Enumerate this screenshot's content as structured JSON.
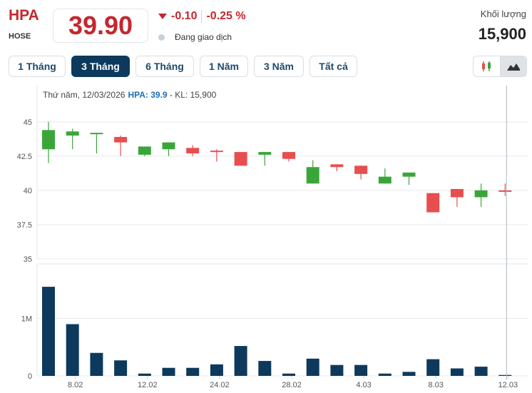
{
  "header": {
    "ticker": "HPA",
    "exchange": "HOSE",
    "price": "39.90",
    "change": "-0.10",
    "change_pct": "-0.25 %",
    "status": "Đang giao dịch",
    "volume_label": "Khối lượng",
    "volume_value": "15,900"
  },
  "range_tabs": [
    {
      "label": "1 Tháng",
      "active": false
    },
    {
      "label": "3 Tháng",
      "active": true
    },
    {
      "label": "6 Tháng",
      "active": false
    },
    {
      "label": "1 Năm",
      "active": false
    },
    {
      "label": "3 Năm",
      "active": false
    },
    {
      "label": "Tất cả",
      "active": false
    }
  ],
  "chart_toggle": {
    "active": "area",
    "options": [
      "candlestick-icon",
      "area-chart-icon"
    ]
  },
  "tooltip": {
    "date_text": "Thứ năm, 12/03/2026",
    "symbol_price": "HPA: 39.9",
    "volume_text": " - KL: 15,900"
  },
  "colors": {
    "up": "#3aa63a",
    "down": "#e84e4e",
    "volume": "#0d3a5c",
    "accent": "#c4272f",
    "tab_active": "#0d3a5c"
  },
  "chart_data": {
    "type": "candlestick",
    "price_axis": {
      "ticks": [
        35,
        37.5,
        40,
        42.5,
        45
      ],
      "tick_labels": [
        "35",
        "37.5",
        "40",
        "42.5",
        "45"
      ],
      "ylim": [
        35,
        45.2
      ]
    },
    "volume_axis": {
      "ticks": [
        0,
        1000000
      ],
      "tick_labels": [
        "0",
        "1M"
      ],
      "ylim": [
        0,
        1700000
      ]
    },
    "x_tick_labels": [
      "8.02",
      "12.02",
      "24.02",
      "28.02",
      "4.03",
      "8.03",
      "12.03"
    ],
    "x_tick_index": [
      1,
      4,
      7,
      10,
      13,
      16,
      19
    ],
    "candles": [
      {
        "o": 43.0,
        "h": 45.0,
        "l": 42.0,
        "c": 44.4
      },
      {
        "o": 44.0,
        "h": 44.5,
        "l": 43.0,
        "c": 44.3
      },
      {
        "o": 44.2,
        "h": 44.2,
        "l": 42.7,
        "c": 44.2
      },
      {
        "o": 43.9,
        "h": 44.0,
        "l": 42.5,
        "c": 43.5
      },
      {
        "o": 42.6,
        "h": 43.2,
        "l": 42.5,
        "c": 43.2
      },
      {
        "o": 43.0,
        "h": 43.5,
        "l": 42.5,
        "c": 43.5
      },
      {
        "o": 43.1,
        "h": 43.3,
        "l": 42.5,
        "c": 42.7
      },
      {
        "o": 42.9,
        "h": 43.0,
        "l": 42.1,
        "c": 42.8
      },
      {
        "o": 42.8,
        "h": 42.8,
        "l": 41.8,
        "c": 41.8
      },
      {
        "o": 42.6,
        "h": 42.8,
        "l": 41.8,
        "c": 42.8
      },
      {
        "o": 42.8,
        "h": 42.8,
        "l": 42.1,
        "c": 42.3
      },
      {
        "o": 40.5,
        "h": 42.2,
        "l": 40.5,
        "c": 41.7
      },
      {
        "o": 41.9,
        "h": 41.9,
        "l": 41.4,
        "c": 41.7
      },
      {
        "o": 41.8,
        "h": 41.8,
        "l": 40.8,
        "c": 41.2
      },
      {
        "o": 40.5,
        "h": 41.6,
        "l": 40.5,
        "c": 41.0
      },
      {
        "o": 41.0,
        "h": 41.3,
        "l": 40.4,
        "c": 41.3
      },
      {
        "o": 39.8,
        "h": 39.8,
        "l": 38.4,
        "c": 38.4
      },
      {
        "o": 40.1,
        "h": 40.1,
        "l": 38.8,
        "c": 39.5
      },
      {
        "o": 39.5,
        "h": 40.5,
        "l": 38.8,
        "c": 40.0
      },
      {
        "o": 40.0,
        "h": 40.5,
        "l": 39.6,
        "c": 39.9
      }
    ],
    "volumes": [
      1550000,
      900000,
      400000,
      270000,
      40000,
      140000,
      140000,
      200000,
      520000,
      260000,
      40000,
      300000,
      190000,
      190000,
      40000,
      70000,
      290000,
      130000,
      160000,
      15900
    ]
  }
}
